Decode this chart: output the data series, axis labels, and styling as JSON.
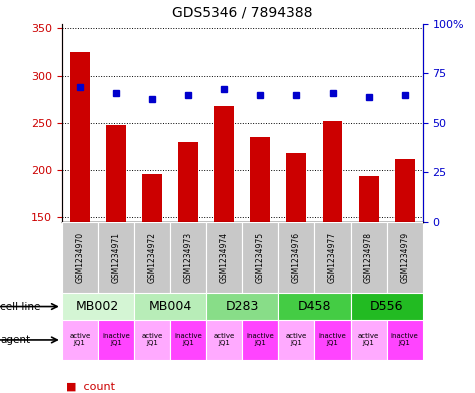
{
  "title": "GDS5346 / 7894388",
  "samples": [
    "GSM1234970",
    "GSM1234971",
    "GSM1234972",
    "GSM1234973",
    "GSM1234974",
    "GSM1234975",
    "GSM1234976",
    "GSM1234977",
    "GSM1234978",
    "GSM1234979"
  ],
  "counts": [
    325,
    248,
    196,
    230,
    268,
    235,
    218,
    252,
    194,
    212
  ],
  "percentile_ranks": [
    68,
    65,
    62,
    64,
    67,
    64,
    64,
    65,
    63,
    64
  ],
  "ylim_left": [
    145,
    355
  ],
  "ylim_right": [
    0,
    100
  ],
  "yticks_left": [
    150,
    200,
    250,
    300,
    350
  ],
  "yticks_right": [
    0,
    25,
    50,
    75,
    100
  ],
  "cell_lines": [
    {
      "label": "MB002",
      "start": 0,
      "end": 2,
      "color": "#d4f5d4"
    },
    {
      "label": "MB004",
      "start": 2,
      "end": 4,
      "color": "#b8edb8"
    },
    {
      "label": "D283",
      "start": 4,
      "end": 6,
      "color": "#88dd88"
    },
    {
      "label": "D458",
      "start": 6,
      "end": 8,
      "color": "#44cc44"
    },
    {
      "label": "D556",
      "start": 8,
      "end": 10,
      "color": "#22bb22"
    }
  ],
  "bar_color": "#cc0000",
  "dot_color": "#0000cc",
  "tick_color_left": "#cc0000",
  "tick_color_right": "#0000cc",
  "sample_bg_color": "#c8c8c8",
  "agent_active_color": "#ffaaff",
  "agent_inactive_color": "#ff44ff",
  "legend_bar_color": "#cc0000",
  "legend_dot_color": "#0000bb"
}
